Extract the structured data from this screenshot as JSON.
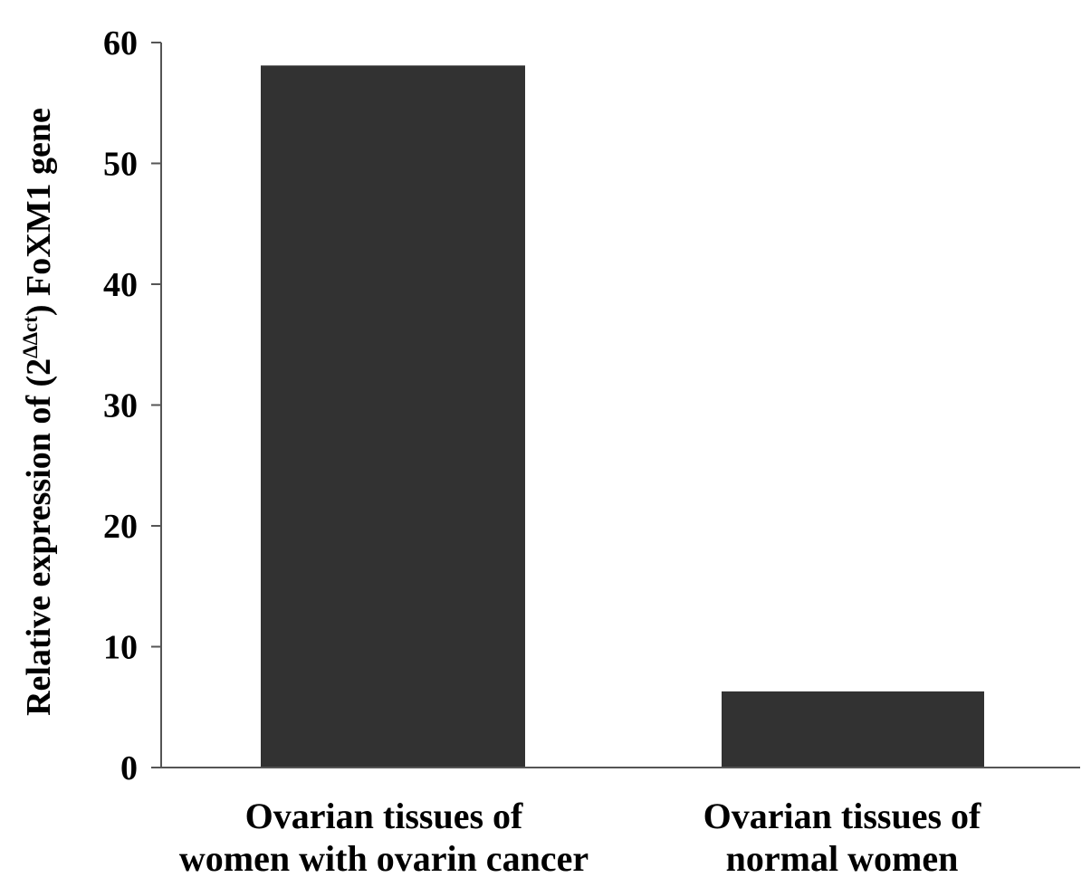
{
  "chart_data": {
    "type": "bar",
    "categories": [
      [
        "Ovarian tissues of",
        "women with ovarin cancer"
      ],
      [
        "Ovarian tissues of",
        "normal women"
      ]
    ],
    "values": [
      58.1,
      6.3
    ],
    "ylabel": {
      "before": "Relative expression of (2",
      "superscript": "ΔΔct",
      "after": ") FoXM1 gene"
    },
    "yticks": [
      "0",
      "10",
      "20",
      "30",
      "40",
      "50",
      "60"
    ],
    "ylim": [
      0,
      60
    ],
    "grid": false,
    "legend": "none",
    "bar_color": "#323232",
    "axis_color": "#555555"
  }
}
